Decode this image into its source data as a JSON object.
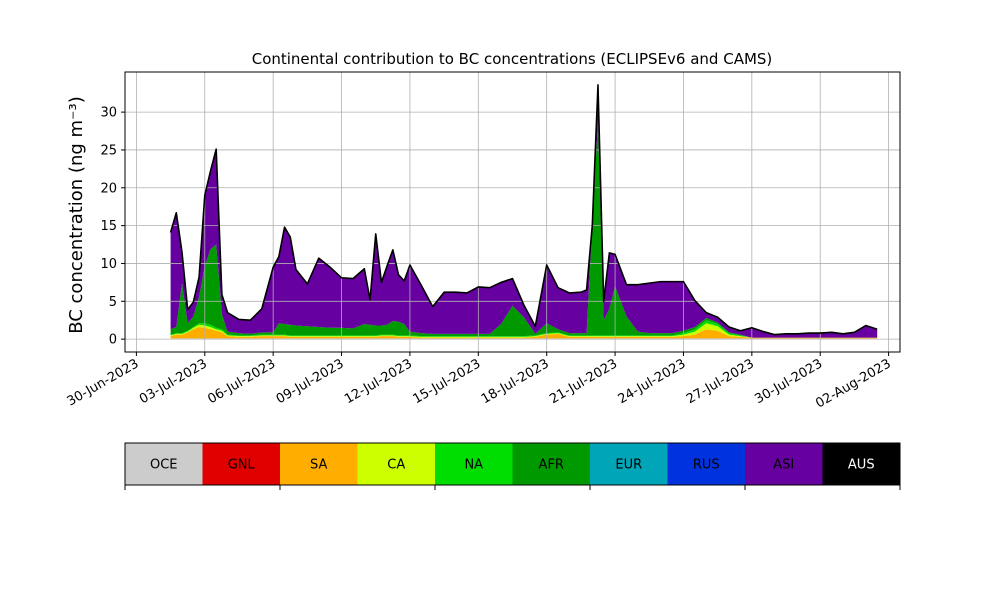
{
  "chart_data": {
    "type": "area",
    "title": "Continental contribution to BC concentrations (ECLIPSEv6 and CAMS)",
    "ylabel": "BC concentration (ng m⁻³)",
    "xlabel": "",
    "xlim": [
      "2023-06-29T12:00",
      "2023-08-02T12:00"
    ],
    "ylim": [
      -1.7,
      35.3
    ],
    "x_tick_labels": [
      "30-Jun-2023",
      "03-Jul-2023",
      "06-Jul-2023",
      "09-Jul-2023",
      "12-Jul-2023",
      "15-Jul-2023",
      "18-Jul-2023",
      "21-Jul-2023",
      "24-Jul-2023",
      "27-Jul-2023",
      "30-Jul-2023",
      "02-Aug-2023"
    ],
    "x_tick_dates": [
      "2023-06-30",
      "2023-07-03",
      "2023-07-06",
      "2023-07-09",
      "2023-07-12",
      "2023-07-15",
      "2023-07-18",
      "2023-07-21",
      "2023-07-24",
      "2023-07-27",
      "2023-07-30",
      "2023-08-02"
    ],
    "y_ticks": [
      0,
      5,
      10,
      15,
      20,
      25,
      30
    ],
    "grid": true,
    "legend": {
      "placement": "colorbar below plot",
      "entries": [
        {
          "name": "OCE",
          "color": "#cccccc"
        },
        {
          "name": "GNL",
          "color": "#e00000"
        },
        {
          "name": "SA",
          "color": "#ffae00"
        },
        {
          "name": "CA",
          "color": "#ccff00"
        },
        {
          "name": "NA",
          "color": "#00dd00"
        },
        {
          "name": "AFR",
          "color": "#009900"
        },
        {
          "name": "EUR",
          "color": "#00a6b8"
        },
        {
          "name": "RUS",
          "color": "#0033dd"
        },
        {
          "name": "ASI",
          "color": "#6600a0"
        },
        {
          "name": "AUS",
          "color": "#000000"
        }
      ]
    },
    "x": [
      "2023-07-01T12:00",
      "2023-07-01T18:00",
      "2023-07-02T00:00",
      "2023-07-02T06:00",
      "2023-07-02T12:00",
      "2023-07-02T18:00",
      "2023-07-03T00:00",
      "2023-07-03T06:00",
      "2023-07-03T12:00",
      "2023-07-03T18:00",
      "2023-07-04T00:00",
      "2023-07-04T12:00",
      "2023-07-05T00:00",
      "2023-07-05T12:00",
      "2023-07-06T00:00",
      "2023-07-06T06:00",
      "2023-07-06T12:00",
      "2023-07-06T18:00",
      "2023-07-07T00:00",
      "2023-07-07T12:00",
      "2023-07-08T00:00",
      "2023-07-08T12:00",
      "2023-07-09T00:00",
      "2023-07-09T12:00",
      "2023-07-10T00:00",
      "2023-07-10T06:00",
      "2023-07-10T12:00",
      "2023-07-10T18:00",
      "2023-07-11T00:00",
      "2023-07-11T06:00",
      "2023-07-11T12:00",
      "2023-07-11T18:00",
      "2023-07-12T00:00",
      "2023-07-12T12:00",
      "2023-07-13T00:00",
      "2023-07-13T12:00",
      "2023-07-14T00:00",
      "2023-07-14T12:00",
      "2023-07-15T00:00",
      "2023-07-15T12:00",
      "2023-07-16T00:00",
      "2023-07-16T12:00",
      "2023-07-17T00:00",
      "2023-07-17T12:00",
      "2023-07-18T00:00",
      "2023-07-18T12:00",
      "2023-07-19T00:00",
      "2023-07-19T12:00",
      "2023-07-19T18:00",
      "2023-07-20T00:00",
      "2023-07-20T06:00",
      "2023-07-20T12:00",
      "2023-07-20T18:00",
      "2023-07-21T00:00",
      "2023-07-21T12:00",
      "2023-07-22T00:00",
      "2023-07-22T12:00",
      "2023-07-23T00:00",
      "2023-07-23T12:00",
      "2023-07-24T00:00",
      "2023-07-24T12:00",
      "2023-07-25T00:00",
      "2023-07-25T12:00",
      "2023-07-26T00:00",
      "2023-07-26T12:00",
      "2023-07-27T00:00",
      "2023-07-27T12:00",
      "2023-07-28T00:00",
      "2023-07-28T12:00",
      "2023-07-29T00:00",
      "2023-07-29T12:00",
      "2023-07-30T00:00",
      "2023-07-30T12:00",
      "2023-07-31T00:00",
      "2023-07-31T12:00",
      "2023-08-01T00:00",
      "2023-08-01T12:00"
    ],
    "series": [
      {
        "name": "OCE",
        "values": [
          0.1,
          0.1,
          0.1,
          0.1,
          0.1,
          0.1,
          0.1,
          0.1,
          0.1,
          0.1,
          0.1,
          0.1,
          0.1,
          0.1,
          0.1,
          0.1,
          0.1,
          0.1,
          0.1,
          0.1,
          0.1,
          0.1,
          0.1,
          0.1,
          0.1,
          0.1,
          0.1,
          0.1,
          0.1,
          0.1,
          0.1,
          0.1,
          0.1,
          0.1,
          0.1,
          0.1,
          0.1,
          0.1,
          0.1,
          0.1,
          0.1,
          0.1,
          0.1,
          0.1,
          0.1,
          0.1,
          0.1,
          0.1,
          0.1,
          0.1,
          0.1,
          0.1,
          0.1,
          0.1,
          0.1,
          0.1,
          0.1,
          0.1,
          0.1,
          0.1,
          0.1,
          0.1,
          0.1,
          0.1,
          0.1,
          0.1,
          0.1,
          0.1,
          0.1,
          0.1,
          0.1,
          0.1,
          0.1,
          0.1,
          0.1,
          0.1,
          0.1
        ]
      },
      {
        "name": "GNL",
        "values": [
          0,
          0,
          0,
          0,
          0,
          0,
          0,
          0,
          0,
          0,
          0,
          0,
          0,
          0,
          0,
          0,
          0,
          0,
          0,
          0,
          0,
          0,
          0,
          0,
          0,
          0,
          0,
          0,
          0,
          0,
          0,
          0,
          0,
          0,
          0,
          0,
          0,
          0,
          0,
          0,
          0,
          0,
          0,
          0,
          0,
          0,
          0,
          0,
          0,
          0,
          0,
          0,
          0,
          0,
          0,
          0,
          0,
          0,
          0,
          0,
          0,
          0,
          0,
          0,
          0,
          0,
          0,
          0,
          0,
          0,
          0,
          0,
          0,
          0,
          0,
          0,
          0
        ]
      },
      {
        "name": "SA",
        "values": [
          0.3,
          0.5,
          0.5,
          0.8,
          1.2,
          1.5,
          1.4,
          1.2,
          1.0,
          0.8,
          0.3,
          0.2,
          0.2,
          0.3,
          0.3,
          0.3,
          0.3,
          0.2,
          0.2,
          0.2,
          0.2,
          0.2,
          0.2,
          0.2,
          0.2,
          0.2,
          0.2,
          0.3,
          0.3,
          0.3,
          0.2,
          0.2,
          0.2,
          0.1,
          0.1,
          0.1,
          0.1,
          0.1,
          0.1,
          0.1,
          0.1,
          0.1,
          0.1,
          0.2,
          0.5,
          0.6,
          0.2,
          0.2,
          0.2,
          0.2,
          0.2,
          0.2,
          0.2,
          0.2,
          0.2,
          0.2,
          0.2,
          0.2,
          0.2,
          0.3,
          0.5,
          1.2,
          1.0,
          0.3,
          0.2,
          0.1,
          0.1,
          0.1,
          0.1,
          0.1,
          0.1,
          0.1,
          0.1,
          0.1,
          0.1,
          0.1,
          0.1
        ]
      },
      {
        "name": "CA",
        "values": [
          0.1,
          0.1,
          0.1,
          0.1,
          0.2,
          0.3,
          0.3,
          0.3,
          0.2,
          0.2,
          0.1,
          0.1,
          0.1,
          0.1,
          0.1,
          0.1,
          0.1,
          0.1,
          0.1,
          0.1,
          0.1,
          0.1,
          0.1,
          0.1,
          0.1,
          0.1,
          0.1,
          0.1,
          0.1,
          0.1,
          0.1,
          0.1,
          0.1,
          0.1,
          0.1,
          0.1,
          0.1,
          0.1,
          0.1,
          0.1,
          0.1,
          0.1,
          0.1,
          0.1,
          0.1,
          0.1,
          0.1,
          0.1,
          0.1,
          0.1,
          0.1,
          0.1,
          0.1,
          0.1,
          0.1,
          0.1,
          0.1,
          0.1,
          0.1,
          0.2,
          0.4,
          0.8,
          0.6,
          0.2,
          0.1,
          0,
          0,
          0,
          0,
          0,
          0,
          0,
          0,
          0,
          0,
          0,
          0
        ]
      },
      {
        "name": "NA",
        "values": [
          0.1,
          0.1,
          0.1,
          0.1,
          0.1,
          0.2,
          0.3,
          0.3,
          0.2,
          0.2,
          0.1,
          0.1,
          0.1,
          0.1,
          0.1,
          0.1,
          0.1,
          0.1,
          0.1,
          0.1,
          0.1,
          0.1,
          0.1,
          0.1,
          0.1,
          0.1,
          0.1,
          0.1,
          0.1,
          0.1,
          0.1,
          0.1,
          0.1,
          0.1,
          0.1,
          0.1,
          0.1,
          0.1,
          0.1,
          0.1,
          0.1,
          0.1,
          0.1,
          0.1,
          0.1,
          0.1,
          0.1,
          0.1,
          0.1,
          0.1,
          0.1,
          0.1,
          0.1,
          0.1,
          0.1,
          0.1,
          0.1,
          0.1,
          0.1,
          0.2,
          0.3,
          0.4,
          0.3,
          0.2,
          0.1,
          0,
          0,
          0,
          0,
          0,
          0,
          0,
          0,
          0,
          0,
          0,
          0
        ]
      },
      {
        "name": "AFR",
        "values": [
          0.7,
          0.8,
          6.6,
          1.0,
          1.4,
          3.5,
          7.5,
          10.0,
          11.0,
          2.0,
          0.4,
          0.3,
          0.2,
          0.3,
          0.3,
          1.5,
          1.4,
          1.4,
          1.3,
          1.2,
          1.1,
          1.0,
          1.0,
          0.9,
          1.5,
          1.4,
          1.3,
          1.2,
          1.3,
          1.8,
          1.8,
          1.5,
          0.5,
          0.4,
          0.3,
          0.3,
          0.3,
          0.3,
          0.3,
          0.3,
          1.6,
          4.0,
          2.5,
          0.2,
          1.3,
          0.4,
          0.3,
          0.3,
          0.3,
          14.5,
          28.3,
          2.0,
          3.5,
          6.5,
          2.5,
          0.5,
          0.3,
          0.3,
          0.3,
          0.3,
          0.3,
          0.3,
          0.2,
          0.1,
          0.1,
          0,
          0,
          0,
          0,
          0,
          0,
          0,
          0,
          0,
          0,
          0,
          0
        ]
      },
      {
        "name": "EUR",
        "values": [
          0,
          0,
          0,
          0,
          0,
          0,
          0,
          0,
          0,
          0,
          0,
          0,
          0,
          0,
          0,
          0,
          0,
          0,
          0,
          0,
          0,
          0,
          0,
          0,
          0,
          0,
          0,
          0,
          0,
          0,
          0,
          0,
          0,
          0,
          0,
          0,
          0,
          0,
          0,
          0,
          0,
          0,
          0,
          0,
          0,
          0,
          0,
          0,
          0,
          0,
          0,
          0,
          0,
          0,
          0,
          0,
          0,
          0,
          0,
          0,
          0,
          0,
          0,
          0,
          0,
          0,
          0,
          0,
          0,
          0,
          0,
          0,
          0,
          0,
          0,
          0,
          0
        ]
      },
      {
        "name": "RUS",
        "values": [
          0,
          0,
          0,
          0,
          0,
          0,
          0,
          0,
          0,
          0,
          0,
          0,
          0,
          0,
          0,
          0,
          0,
          0,
          0,
          0,
          0,
          0,
          0,
          0,
          0,
          0,
          0,
          0,
          0,
          0,
          0,
          0,
          0,
          0,
          0,
          0,
          0,
          0,
          0,
          0,
          0,
          0,
          0,
          0,
          0,
          0,
          0,
          0,
          0,
          0,
          0,
          0,
          0,
          0,
          0,
          0,
          0,
          0,
          0,
          0,
          0,
          0,
          0,
          0,
          0,
          0,
          0,
          0,
          0,
          0,
          0,
          0,
          0,
          0,
          0,
          0,
          0
        ]
      },
      {
        "name": "ASI",
        "values": [
          12.8,
          15.1,
          4.1,
          1.8,
          1.9,
          2.6,
          9.4,
          10.3,
          12.6,
          2.6,
          2.5,
          1.8,
          1.8,
          3.1,
          8.6,
          8.8,
          12.8,
          11.6,
          7.4,
          5.6,
          9.1,
          8.0,
          6.6,
          6.6,
          7.3,
          3.3,
          12.1,
          5.7,
          7.8,
          9.4,
          6.2,
          5.7,
          8.8,
          6.3,
          3.6,
          5.5,
          5.5,
          5.4,
          6.2,
          6.1,
          5.5,
          3.6,
          1.6,
          1.0,
          7.7,
          5.5,
          5.3,
          5.4,
          5.7,
          0.0,
          4.8,
          2.5,
          7.4,
          4.2,
          4.2,
          6.2,
          6.6,
          6.8,
          6.8,
          6.5,
          3.5,
          0.7,
          0.7,
          0.7,
          0.5,
          1.3,
          0.8,
          0.4,
          0.5,
          0.5,
          0.6,
          0.6,
          0.7,
          0.5,
          0.7,
          1.6,
          1.1
        ]
      },
      {
        "name": "AUS",
        "values": [
          0,
          0,
          0,
          0,
          0,
          0,
          0,
          0,
          0,
          0,
          0,
          0,
          0,
          0,
          0,
          0,
          0,
          0,
          0,
          0,
          0,
          0,
          0,
          0,
          0,
          0,
          0,
          0,
          0,
          0,
          0,
          0,
          0,
          0,
          0,
          0,
          0,
          0,
          0,
          0,
          0,
          0,
          0,
          0,
          0,
          0,
          0,
          0,
          0,
          0,
          0,
          0,
          0,
          0,
          0,
          0,
          0,
          0,
          0,
          0,
          0,
          0,
          0,
          0,
          0,
          0,
          0,
          0,
          0,
          0,
          0,
          0,
          0,
          0,
          0,
          0,
          0
        ]
      }
    ],
    "total_line_color": "#000000"
  }
}
